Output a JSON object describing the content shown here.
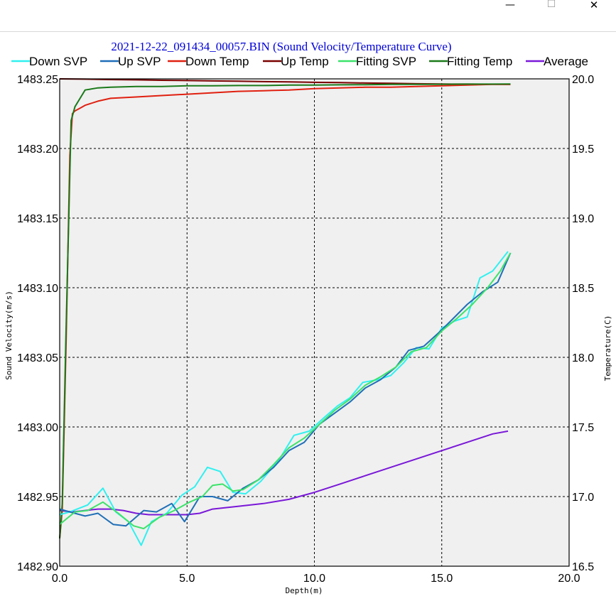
{
  "window": {
    "minimize_glyph": "—",
    "maximize_glyph": "☐",
    "close_glyph": "✕"
  },
  "chart_data": {
    "type": "line",
    "title": "2021-12-22_091434_00057.BIN (Sound Velocity/Temperature Curve)",
    "xlabel": "Depth(m)",
    "ylabel": "Sound Velocity(m/s)",
    "y2label": "Temperature(C)",
    "xlim": [
      0,
      20
    ],
    "ylim": [
      1482.9,
      1483.25
    ],
    "y2lim": [
      16.5,
      20.0
    ],
    "grid": true,
    "legend_position": "top",
    "x_ticks": [
      "0.0",
      "5.0",
      "10.0",
      "15.0",
      "20.0"
    ],
    "y_ticks": [
      "1482.90",
      "1482.95",
      "1483.00",
      "1483.05",
      "1483.10",
      "1483.15",
      "1483.20",
      "1483.25"
    ],
    "y2_ticks": [
      "16.5",
      "17.0",
      "17.5",
      "18.0",
      "18.5",
      "19.0",
      "19.5",
      "20.0"
    ],
    "series": [
      {
        "name": "Down SVP",
        "axis": "left",
        "color": "#30f0f0",
        "x": [
          0.0,
          0.4,
          1.1,
          1.7,
          2.2,
          2.7,
          3.2,
          3.6,
          4.2,
          4.8,
          5.3,
          5.8,
          6.3,
          6.8,
          7.3,
          7.9,
          8.6,
          9.2,
          9.8,
          10.4,
          10.9,
          11.4,
          11.9,
          12.5,
          13.0,
          13.5,
          14.0,
          14.5,
          15.0,
          15.5,
          16.0,
          16.5,
          17.0,
          17.6
        ],
        "values": [
          1482.937,
          1482.939,
          1482.944,
          1482.956,
          1482.939,
          1482.932,
          1482.915,
          1482.932,
          1482.938,
          1482.951,
          1482.957,
          1482.971,
          1482.968,
          1482.953,
          1482.952,
          1482.961,
          1482.976,
          1482.994,
          1482.997,
          1483.007,
          1483.015,
          1483.021,
          1483.032,
          1483.034,
          1483.037,
          1483.046,
          1483.057,
          1483.056,
          1483.071,
          1483.076,
          1483.079,
          1483.107,
          1483.112,
          1483.126
        ]
      },
      {
        "name": "Up SVP",
        "axis": "left",
        "color": "#1f6fb8",
        "x": [
          0.0,
          0.4,
          1.0,
          1.5,
          2.1,
          2.6,
          3.3,
          3.8,
          4.4,
          4.9,
          5.5,
          6.0,
          6.6,
          7.2,
          7.8,
          8.4,
          9.0,
          9.6,
          10.2,
          10.8,
          11.4,
          12.0,
          12.6,
          13.2,
          13.7,
          14.3,
          14.9,
          15.4,
          16.0,
          16.6,
          17.2,
          17.7
        ],
        "values": [
          1482.941,
          1482.939,
          1482.936,
          1482.938,
          1482.93,
          1482.929,
          1482.94,
          1482.939,
          1482.945,
          1482.932,
          1482.95,
          1482.95,
          1482.947,
          1482.956,
          1482.962,
          1482.971,
          1482.983,
          1482.989,
          1483.002,
          1483.01,
          1483.018,
          1483.028,
          1483.034,
          1483.043,
          1483.055,
          1483.058,
          1483.068,
          1483.077,
          1483.088,
          1483.097,
          1483.104,
          1483.125
        ]
      },
      {
        "name": "Down Temp",
        "axis": "right",
        "color": "#e02010",
        "x": [
          0.0,
          0.1,
          0.25,
          0.4,
          0.5,
          0.6,
          0.8,
          1.0,
          1.5,
          2.0,
          3.0,
          4.0,
          5.0,
          6.0,
          7.0,
          8.0,
          9.0,
          10.0,
          11.0,
          12.0,
          13.0,
          14.0,
          15.0,
          16.0,
          17.0,
          17.7
        ],
        "values": [
          16.7,
          16.9,
          18.1,
          19.45,
          19.75,
          19.77,
          19.79,
          19.81,
          19.84,
          19.86,
          19.87,
          19.88,
          19.89,
          19.9,
          19.91,
          19.915,
          19.92,
          19.93,
          19.935,
          19.94,
          19.94,
          19.945,
          19.95,
          19.955,
          19.96,
          19.96
        ]
      },
      {
        "name": "Up Temp",
        "axis": "right",
        "color": "#7a0000",
        "x": [
          0.0,
          1.0,
          2.0,
          3.0,
          4.0,
          5.0,
          6.0,
          7.0,
          8.0,
          9.0,
          10.0,
          11.0,
          12.0,
          13.0,
          14.0,
          15.0,
          16.0,
          17.0,
          17.7
        ],
        "values": [
          20.0,
          19.998,
          19.995,
          19.993,
          19.99,
          19.988,
          19.985,
          19.983,
          19.98,
          19.978,
          19.975,
          19.973,
          19.97,
          19.968,
          19.965,
          19.963,
          19.962,
          19.961,
          19.96
        ]
      },
      {
        "name": "Fitting SVP",
        "axis": "left",
        "color": "#3ce36a",
        "x": [
          0.0,
          0.6,
          1.1,
          1.7,
          2.3,
          2.9,
          3.3,
          3.9,
          4.5,
          5.1,
          5.6,
          6.0,
          6.4,
          6.8,
          7.2,
          7.8,
          8.4,
          9.0,
          9.6,
          10.2,
          10.8,
          11.4,
          12.0,
          12.6,
          13.2,
          13.8,
          14.4,
          15.0,
          15.6,
          16.2,
          16.8,
          17.3,
          17.7
        ],
        "values": [
          1482.93,
          1482.939,
          1482.94,
          1482.946,
          1482.938,
          1482.929,
          1482.927,
          1482.935,
          1482.94,
          1482.946,
          1482.95,
          1482.958,
          1482.959,
          1482.954,
          1482.955,
          1482.962,
          1482.973,
          1482.985,
          1482.992,
          1483.002,
          1483.012,
          1483.02,
          1483.03,
          1483.036,
          1483.043,
          1483.054,
          1483.057,
          1483.069,
          1483.078,
          1483.088,
          1483.1,
          1483.112,
          1483.125
        ]
      },
      {
        "name": "Fitting Temp",
        "axis": "right",
        "color": "#1a7a1a",
        "x": [
          0.0,
          0.1,
          0.25,
          0.45,
          0.6,
          0.8,
          1.0,
          1.5,
          2.0,
          3.0,
          4.0,
          5.0,
          6.0,
          7.0,
          8.0,
          9.0,
          10.0,
          11.0,
          12.0,
          13.0,
          14.0,
          15.0,
          16.0,
          17.0,
          17.7
        ],
        "values": [
          16.7,
          16.95,
          18.2,
          19.7,
          19.8,
          19.86,
          19.92,
          19.935,
          19.94,
          19.945,
          19.945,
          19.95,
          19.95,
          19.952,
          19.952,
          19.955,
          19.955,
          19.957,
          19.958,
          19.96,
          19.96,
          19.961,
          19.962,
          19.962,
          19.963
        ]
      },
      {
        "name": "Average",
        "axis": "left",
        "color": "#7a18d8",
        "x": [
          0.0,
          0.5,
          1.0,
          1.5,
          2.0,
          2.5,
          3.0,
          3.5,
          4.0,
          4.5,
          5.0,
          5.5,
          6.0,
          7.0,
          8.0,
          9.0,
          10.0,
          11.0,
          12.0,
          13.0,
          14.0,
          15.0,
          16.0,
          17.0,
          17.6
        ],
        "values": [
          1482.94,
          1482.939,
          1482.94,
          1482.941,
          1482.941,
          1482.94,
          1482.938,
          1482.937,
          1482.937,
          1482.937,
          1482.937,
          1482.938,
          1482.941,
          1482.943,
          1482.945,
          1482.948,
          1482.953,
          1482.959,
          1482.965,
          1482.971,
          1482.977,
          1482.983,
          1482.989,
          1482.995,
          1482.997
        ]
      }
    ]
  }
}
